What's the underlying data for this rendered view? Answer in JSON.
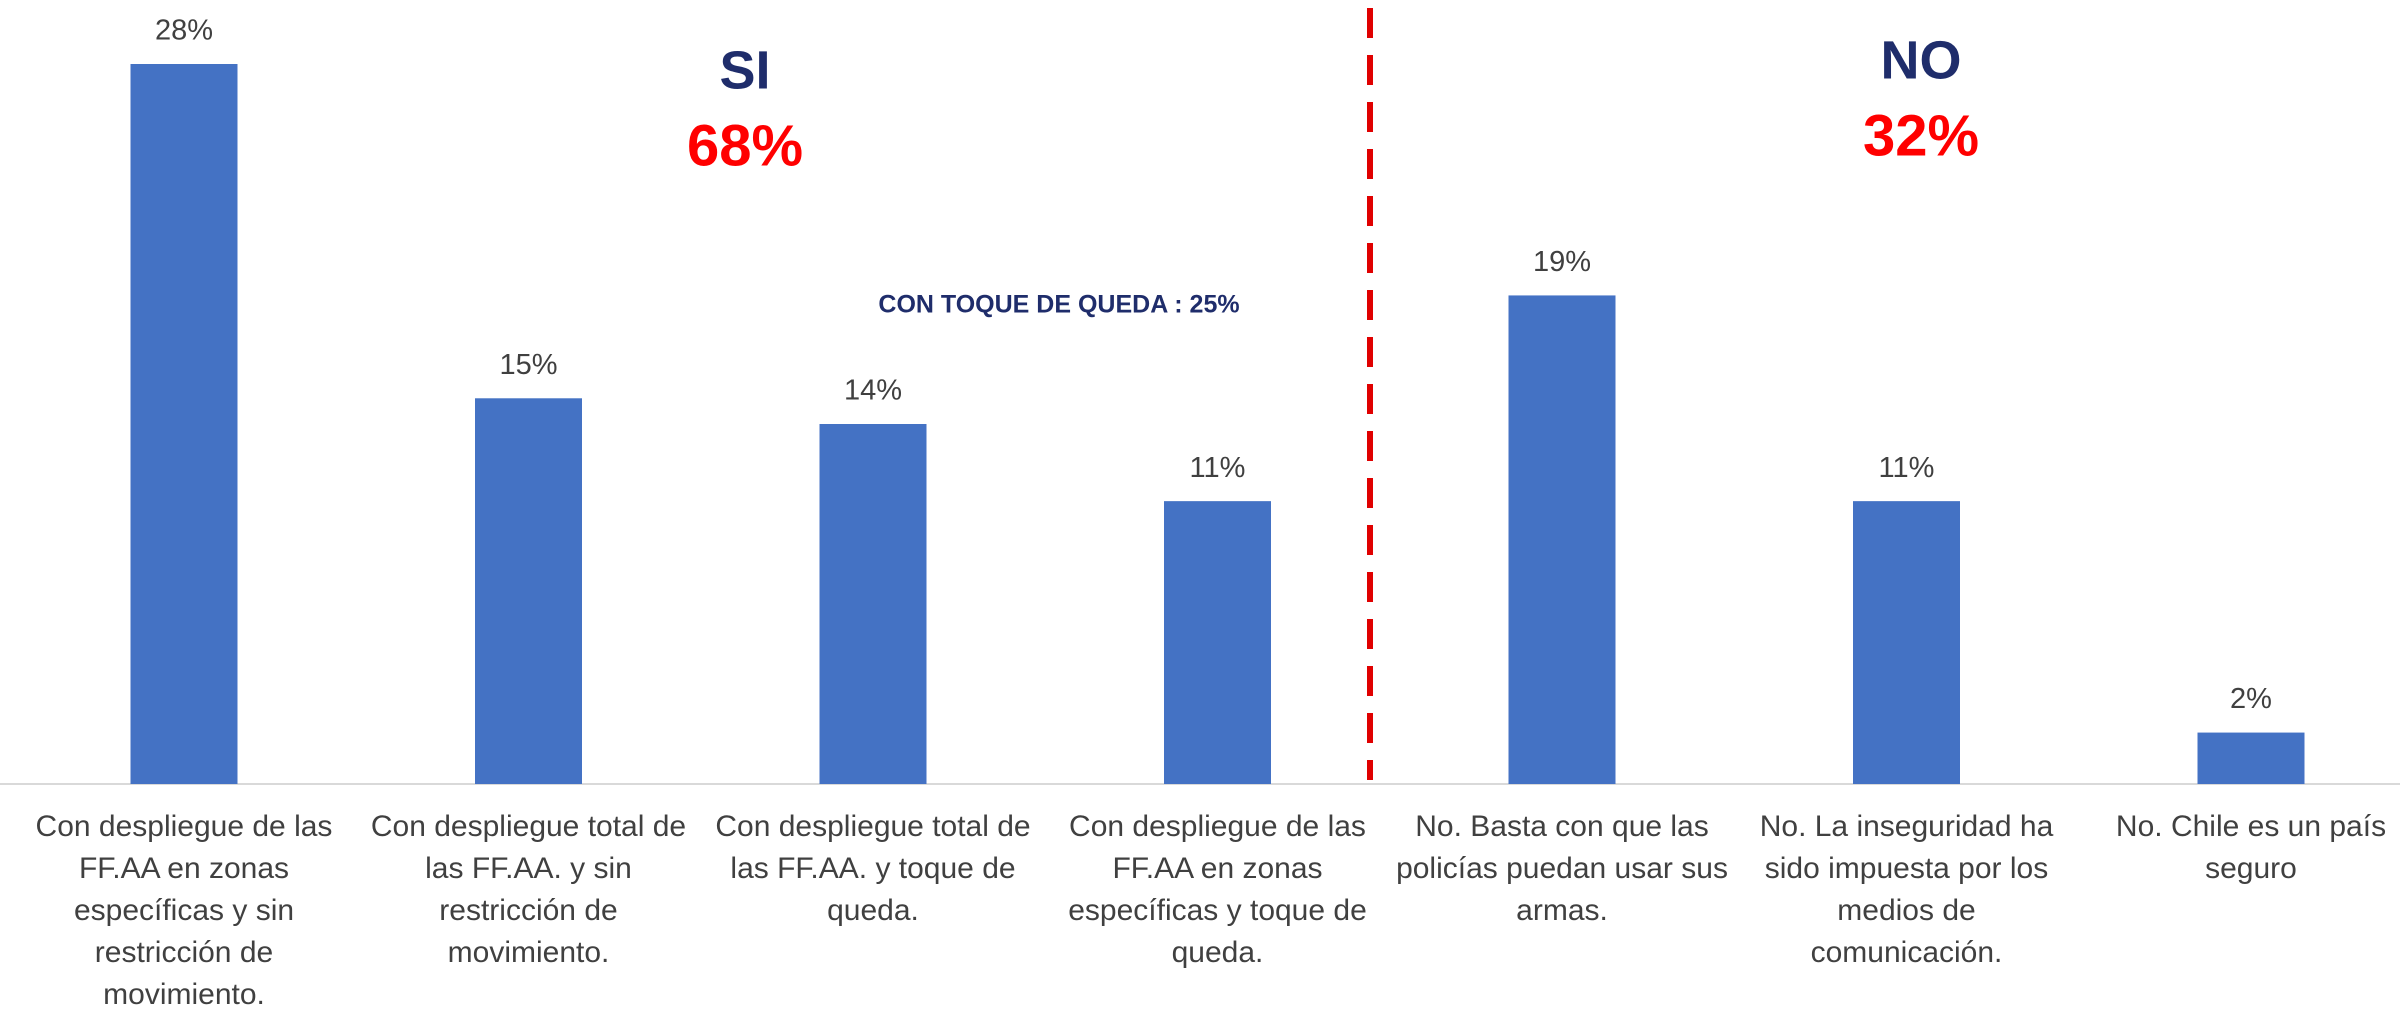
{
  "chart_data": {
    "type": "bar",
    "categories": [
      "Con despliegue de las FF.AA en zonas específicas y sin restricción de movimiento.",
      "Con despliegue total de las FF.AA. y sin restricción de movimiento.",
      "Con despliegue total de las FF.AA. y toque de queda.",
      "Con despliegue de las FF.AA en zonas específicas y toque de queda.",
      "No. Basta con que las policías puedan usar sus armas.",
      "No. La inseguridad ha sido impuesta por los medios de comunicación.",
      "No. Chile es un país seguro"
    ],
    "values": [
      28,
      15,
      14,
      11,
      19,
      11,
      2
    ],
    "value_labels": [
      "28%",
      "15%",
      "14%",
      "11%",
      "19%",
      "11%",
      "2%"
    ],
    "color": "#4472c4",
    "annotations": [
      "SI",
      "68%",
      "NO",
      "32%",
      "CON TOQUE DE QUEDA : 25%"
    ]
  }
}
